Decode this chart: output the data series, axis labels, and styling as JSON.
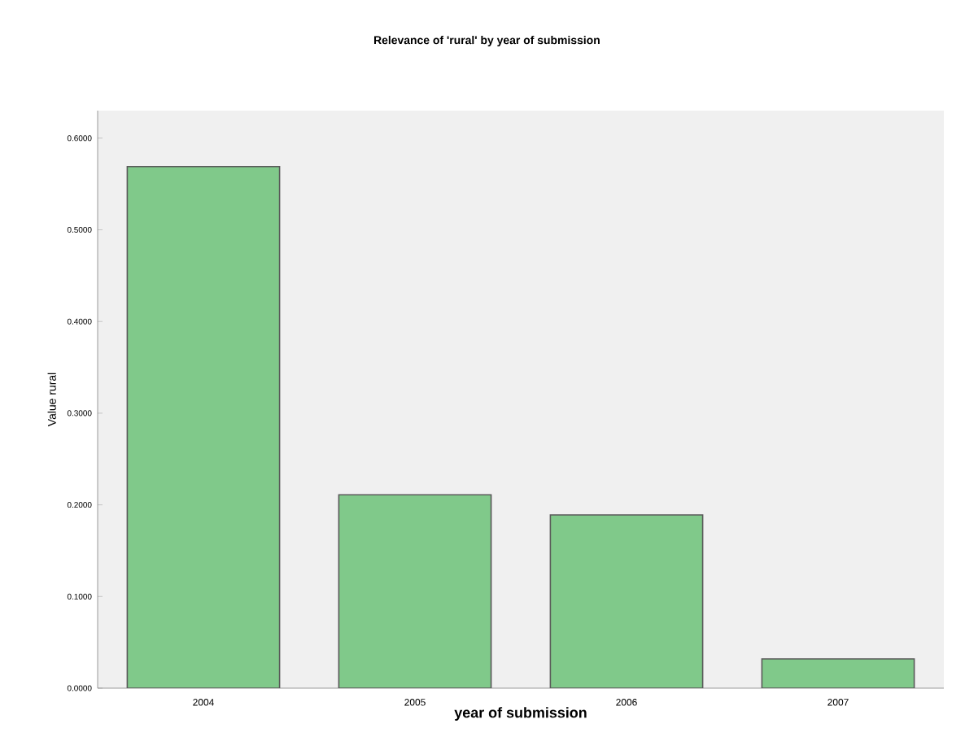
{
  "chart_data": {
    "type": "bar",
    "title": "Relevance of 'rural' by year of submission",
    "xlabel": "year of submission",
    "ylabel": "Value rural",
    "categories": [
      "2004",
      "2005",
      "2006",
      "2007"
    ],
    "values": [
      0.569,
      0.211,
      0.189,
      0.032
    ],
    "color": "#80c98a",
    "ylim": [
      0,
      0.63
    ],
    "yticks": [
      {
        "value": 0,
        "label": "0.0000"
      },
      {
        "value": 0.1,
        "label": "0.1000"
      },
      {
        "value": 0.2,
        "label": "0.2000"
      },
      {
        "value": 0.3,
        "label": "0.3000"
      },
      {
        "value": 0.4,
        "label": "0.4000"
      },
      {
        "value": 0.5,
        "label": "0.5000"
      },
      {
        "value": 0.6,
        "label": "0.6000"
      }
    ]
  }
}
